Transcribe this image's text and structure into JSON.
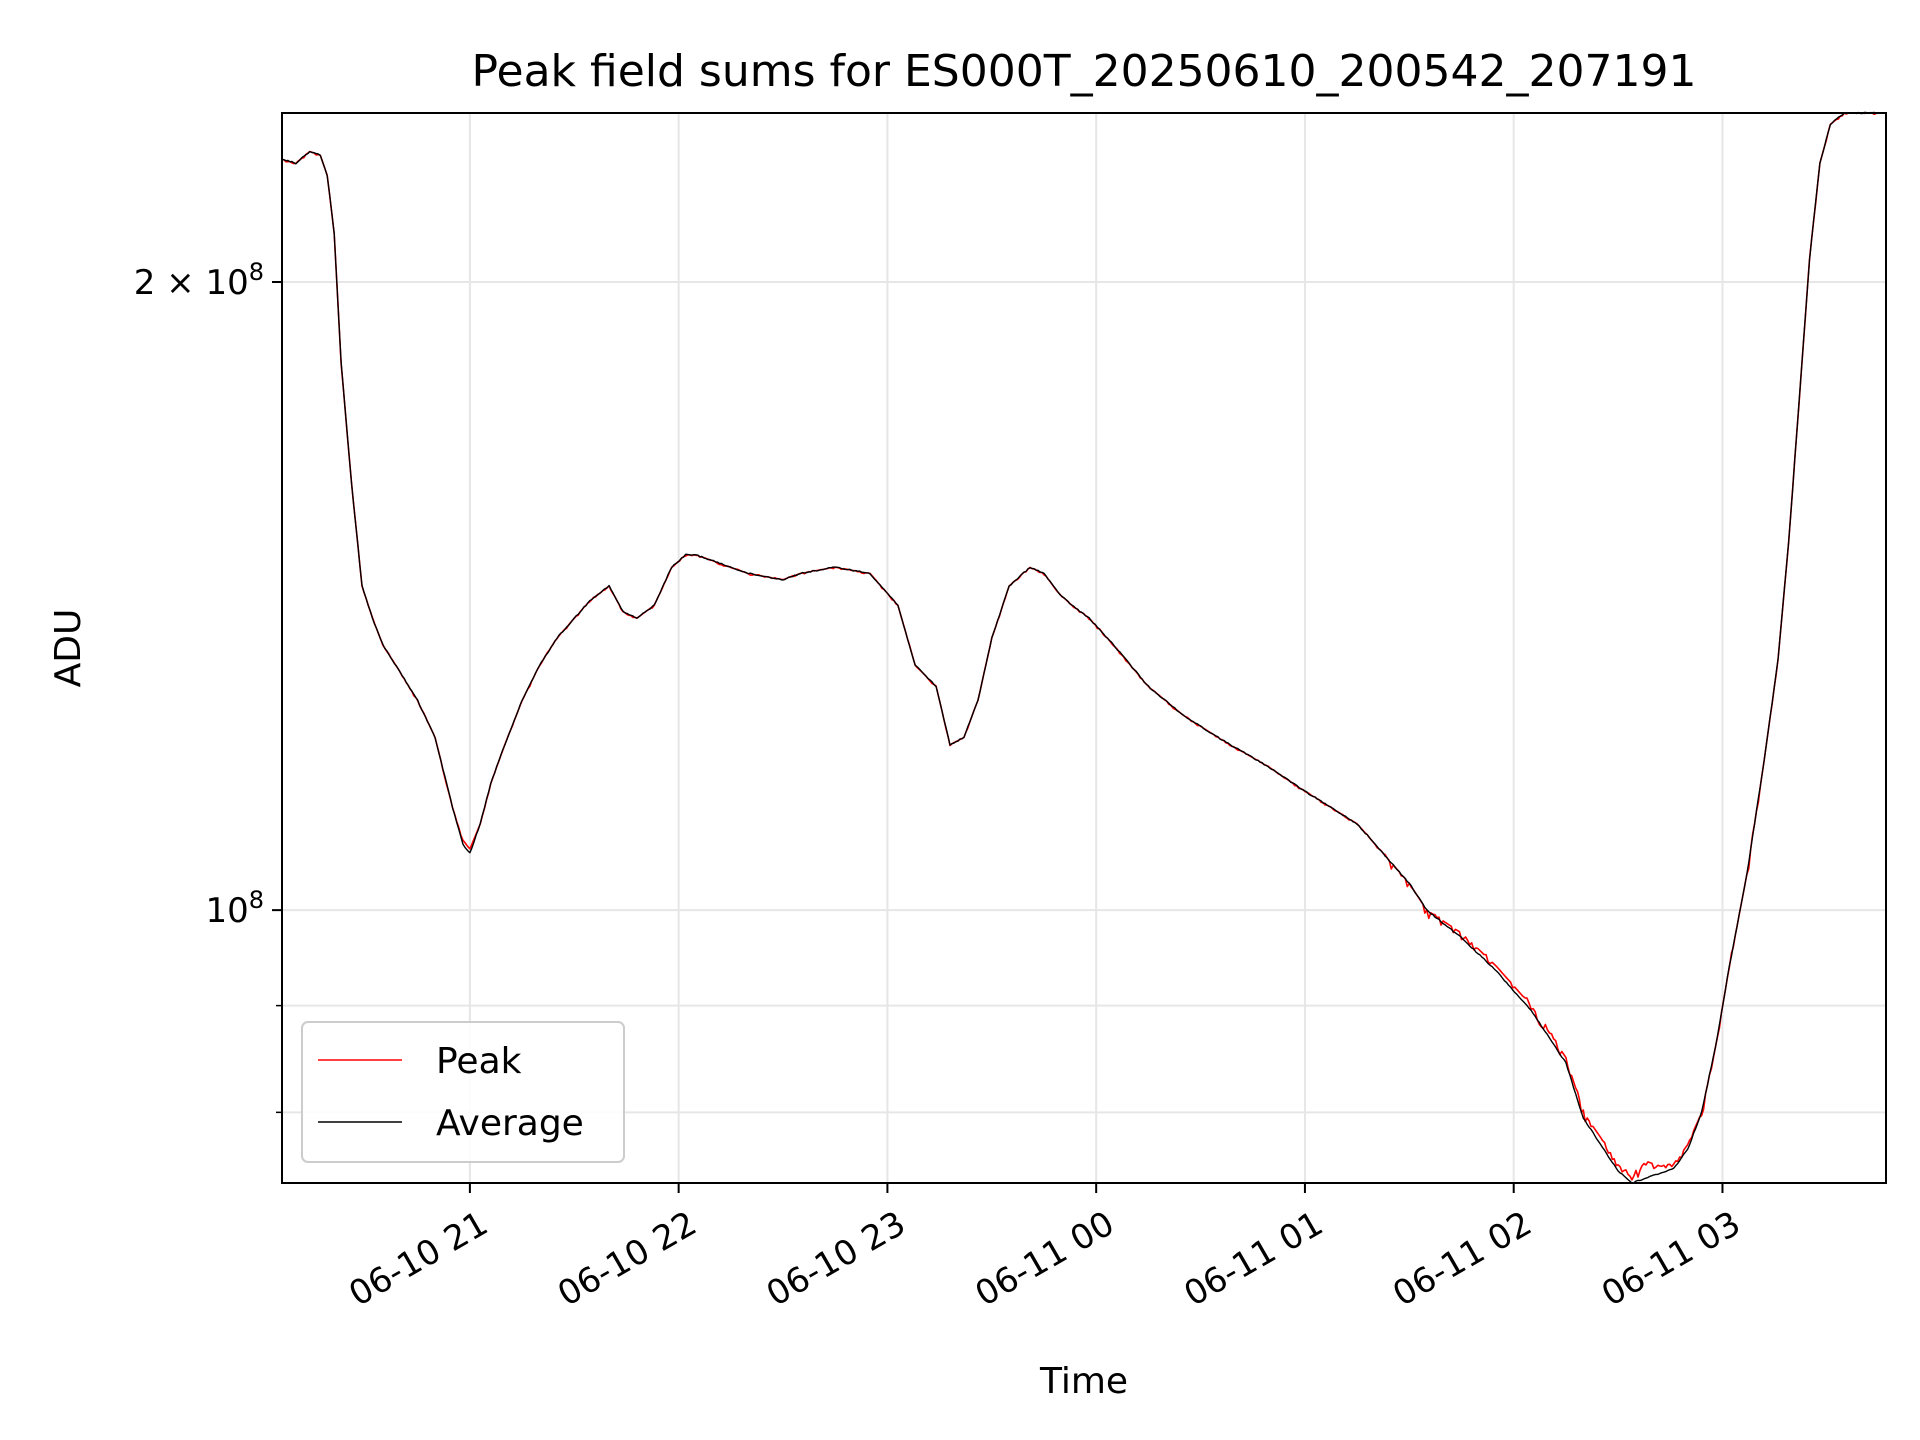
{
  "chart_data": {
    "type": "line",
    "title": "Peak field sums for ES000T_20250610_200542_207191",
    "xlabel": "Time",
    "ylabel": "ADU",
    "yscale": "log",
    "ylim": [
      74000000,
      241000000
    ],
    "xlim": [
      "2025-06-10 20:06",
      "2025-06-11 03:47"
    ],
    "grid": true,
    "legend": "lower-left",
    "xticks": [
      {
        "t": "2025-06-10 21:00",
        "label": "06-10 21"
      },
      {
        "t": "2025-06-10 22:00",
        "label": "06-10 22"
      },
      {
        "t": "2025-06-10 23:00",
        "label": "06-10 23"
      },
      {
        "t": "2025-06-11 00:00",
        "label": "06-11 00"
      },
      {
        "t": "2025-06-11 01:00",
        "label": "06-11 01"
      },
      {
        "t": "2025-06-11 02:00",
        "label": "06-11 02"
      },
      {
        "t": "2025-06-11 03:00",
        "label": "06-11 03"
      }
    ],
    "yticks_major": [
      {
        "v": 100000000,
        "base": "10",
        "exp": "8",
        "coef": ""
      },
      {
        "v": 200000000,
        "base": "10",
        "exp": "8",
        "coef": "2 × "
      }
    ],
    "yticks_minor": [
      80000000,
      90000000
    ],
    "series": [
      {
        "name": "Peak",
        "color": "#ff0000",
        "noisy": true,
        "x": [
          "2025-06-10 20:06",
          "2025-06-10 20:10",
          "2025-06-10 20:14",
          "2025-06-10 20:17",
          "2025-06-10 20:19",
          "2025-06-10 20:21",
          "2025-06-10 20:23",
          "2025-06-10 20:26",
          "2025-06-10 20:29",
          "2025-06-10 20:32",
          "2025-06-10 20:35",
          "2025-06-10 20:40",
          "2025-06-10 20:45",
          "2025-06-10 20:50",
          "2025-06-10 20:55",
          "2025-06-10 20:58",
          "2025-06-10 21:00",
          "2025-06-10 21:03",
          "2025-06-10 21:06",
          "2025-06-10 21:10",
          "2025-06-10 21:15",
          "2025-06-10 21:20",
          "2025-06-10 21:25",
          "2025-06-10 21:30",
          "2025-06-10 21:35",
          "2025-06-10 21:40",
          "2025-06-10 21:44",
          "2025-06-10 21:48",
          "2025-06-10 21:53",
          "2025-06-10 21:58",
          "2025-06-10 22:02",
          "2025-06-10 22:05",
          "2025-06-10 22:10",
          "2025-06-10 22:20",
          "2025-06-10 22:30",
          "2025-06-10 22:35",
          "2025-06-10 22:45",
          "2025-06-10 22:55",
          "2025-06-10 23:03",
          "2025-06-10 23:08",
          "2025-06-10 23:14",
          "2025-06-10 23:18",
          "2025-06-10 23:22",
          "2025-06-10 23:26",
          "2025-06-10 23:30",
          "2025-06-10 23:35",
          "2025-06-10 23:41",
          "2025-06-10 23:45",
          "2025-06-10 23:49",
          "2025-06-10 23:53",
          "2025-06-10 23:58",
          "2025-06-11 00:05",
          "2025-06-11 00:15",
          "2025-06-11 00:25",
          "2025-06-11 00:35",
          "2025-06-11 00:50",
          "2025-06-11 01:00",
          "2025-06-11 01:15",
          "2025-06-11 01:30",
          "2025-06-11 01:35",
          "2025-06-11 01:45",
          "2025-06-11 01:55",
          "2025-06-11 02:05",
          "2025-06-11 02:15",
          "2025-06-11 02:20",
          "2025-06-11 02:25",
          "2025-06-11 02:30",
          "2025-06-11 02:34",
          "2025-06-11 02:38",
          "2025-06-11 02:42",
          "2025-06-11 02:46",
          "2025-06-11 02:50",
          "2025-06-11 02:54",
          "2025-06-11 02:58",
          "2025-06-11 03:02",
          "2025-06-11 03:07",
          "2025-06-11 03:12",
          "2025-06-11 03:16",
          "2025-06-11 03:19",
          "2025-06-11 03:22",
          "2025-06-11 03:25",
          "2025-06-11 03:28",
          "2025-06-11 03:31",
          "2025-06-11 03:35",
          "2025-06-11 03:47"
        ],
        "y": [
          229000000,
          228000000,
          231000000,
          230000000,
          225000000,
          211000000,
          183000000,
          160000000,
          143000000,
          138000000,
          134000000,
          130000000,
          126000000,
          121000000,
          112000000,
          108000000,
          107000000,
          110000000,
          115000000,
          120000000,
          126000000,
          131000000,
          135000000,
          138000000,
          141000000,
          143000000,
          139000000,
          138000000,
          140000000,
          146000000,
          148000000,
          148000000,
          147000000,
          145000000,
          144000000,
          145000000,
          146000000,
          145000000,
          140000000,
          131000000,
          128000000,
          120000000,
          121000000,
          126000000,
          135000000,
          143000000,
          146000000,
          145000000,
          142000000,
          140000000,
          138000000,
          134000000,
          128000000,
          124000000,
          121000000,
          117000000,
          114000000,
          110000000,
          103000000,
          100000000,
          97500000,
          94000000,
          90000000,
          85000000,
          80000000,
          77800000,
          75500000,
          74400000,
          75800000,
          75400000,
          75600000,
          77200000,
          80000000,
          86000000,
          94000000,
          104000000,
          118000000,
          132000000,
          150000000,
          175000000,
          205000000,
          228000000,
          238000000,
          241000000,
          241000000
        ]
      },
      {
        "name": "Average",
        "color": "#000000",
        "noisy": false,
        "x": [
          "2025-06-10 20:06",
          "2025-06-10 20:10",
          "2025-06-10 20:14",
          "2025-06-10 20:17",
          "2025-06-10 20:19",
          "2025-06-10 20:21",
          "2025-06-10 20:23",
          "2025-06-10 20:26",
          "2025-06-10 20:29",
          "2025-06-10 20:32",
          "2025-06-10 20:35",
          "2025-06-10 20:40",
          "2025-06-10 20:45",
          "2025-06-10 20:50",
          "2025-06-10 20:55",
          "2025-06-10 20:58",
          "2025-06-10 21:00",
          "2025-06-10 21:03",
          "2025-06-10 21:06",
          "2025-06-10 21:10",
          "2025-06-10 21:15",
          "2025-06-10 21:20",
          "2025-06-10 21:25",
          "2025-06-10 21:30",
          "2025-06-10 21:35",
          "2025-06-10 21:40",
          "2025-06-10 21:44",
          "2025-06-10 21:48",
          "2025-06-10 21:53",
          "2025-06-10 21:58",
          "2025-06-10 22:02",
          "2025-06-10 22:05",
          "2025-06-10 22:10",
          "2025-06-10 22:20",
          "2025-06-10 22:30",
          "2025-06-10 22:35",
          "2025-06-10 22:45",
          "2025-06-10 22:55",
          "2025-06-10 23:03",
          "2025-06-10 23:08",
          "2025-06-10 23:14",
          "2025-06-10 23:18",
          "2025-06-10 23:22",
          "2025-06-10 23:26",
          "2025-06-10 23:30",
          "2025-06-10 23:35",
          "2025-06-10 23:41",
          "2025-06-10 23:45",
          "2025-06-10 23:49",
          "2025-06-10 23:53",
          "2025-06-10 23:58",
          "2025-06-11 00:05",
          "2025-06-11 00:15",
          "2025-06-11 00:25",
          "2025-06-11 00:35",
          "2025-06-11 00:50",
          "2025-06-11 01:00",
          "2025-06-11 01:15",
          "2025-06-11 01:30",
          "2025-06-11 01:35",
          "2025-06-11 01:45",
          "2025-06-11 01:55",
          "2025-06-11 02:05",
          "2025-06-11 02:15",
          "2025-06-11 02:20",
          "2025-06-11 02:25",
          "2025-06-11 02:30",
          "2025-06-11 02:34",
          "2025-06-11 02:38",
          "2025-06-11 02:42",
          "2025-06-11 02:46",
          "2025-06-11 02:50",
          "2025-06-11 02:54",
          "2025-06-11 02:58",
          "2025-06-11 03:02",
          "2025-06-11 03:07",
          "2025-06-11 03:12",
          "2025-06-11 03:16",
          "2025-06-11 03:19",
          "2025-06-11 03:22",
          "2025-06-11 03:25",
          "2025-06-11 03:28",
          "2025-06-11 03:31",
          "2025-06-11 03:35",
          "2025-06-11 03:47"
        ],
        "y": [
          229000000,
          228000000,
          231000000,
          230000000,
          225000000,
          211000000,
          183000000,
          160000000,
          143000000,
          138000000,
          134000000,
          130000000,
          126000000,
          121000000,
          112000000,
          107500000,
          106500000,
          110000000,
          115000000,
          120000000,
          126000000,
          131000000,
          135000000,
          138000000,
          141000000,
          143000000,
          139000000,
          138000000,
          140000000,
          146000000,
          148000000,
          148000000,
          147000000,
          145000000,
          144000000,
          145000000,
          146000000,
          145000000,
          140000000,
          131000000,
          128000000,
          120000000,
          121000000,
          126000000,
          135000000,
          143000000,
          146000000,
          145000000,
          142000000,
          140000000,
          138000000,
          134000000,
          128000000,
          124000000,
          121000000,
          117000000,
          114000000,
          110000000,
          103000000,
          100000000,
          97000000,
          93500000,
          89500000,
          84500000,
          79500000,
          77200000,
          75000000,
          74000000,
          74400000,
          74800000,
          75200000,
          76800000,
          80000000,
          86000000,
          94000000,
          104000000,
          118000000,
          132000000,
          150000000,
          175000000,
          205000000,
          228000000,
          238000000,
          241000000,
          241000000
        ]
      }
    ]
  }
}
